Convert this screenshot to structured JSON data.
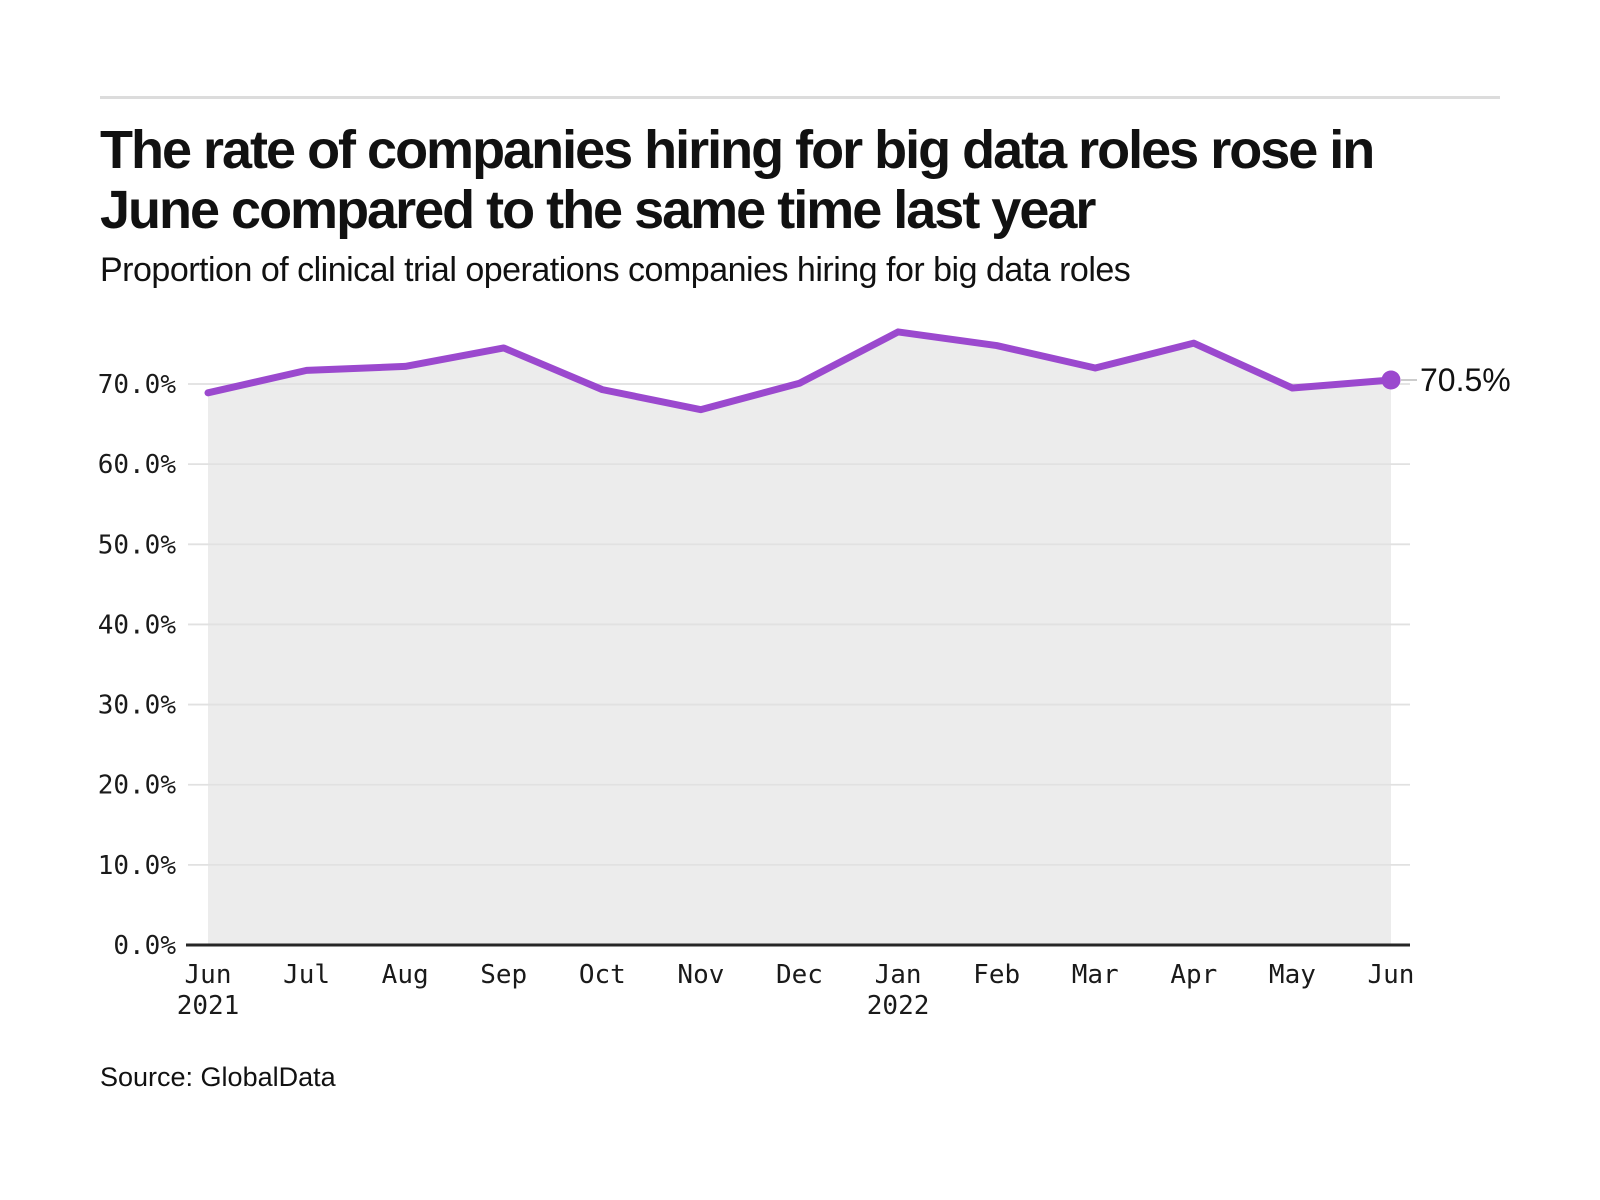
{
  "header": {
    "title": "The rate of companies hiring for big data roles rose in June compared to the same time last year",
    "subtitle": "Proportion of clinical trial operations companies hiring for big data roles"
  },
  "footer": {
    "source": "Source: GlobalData"
  },
  "chart_data": {
    "type": "area",
    "title": "The rate of companies hiring for big data roles rose in June compared to the same time last year",
    "subtitle": "Proportion of clinical trial operations companies hiring for big data roles",
    "source": "Source: GlobalData",
    "categories": [
      "Jun",
      "Jul",
      "Aug",
      "Sep",
      "Oct",
      "Nov",
      "Dec",
      "Jan",
      "Feb",
      "Mar",
      "Apr",
      "May",
      "Jun"
    ],
    "year_labels": [
      {
        "index": 0,
        "label": "2021"
      },
      {
        "index": 7,
        "label": "2022"
      }
    ],
    "series": [
      {
        "name": "Proportion of clinical trial operations companies hiring for big data roles",
        "values": [
          68.9,
          71.7,
          72.2,
          74.5,
          69.3,
          66.8,
          70.1,
          76.5,
          74.8,
          72.0,
          75.1,
          69.5,
          70.5
        ]
      }
    ],
    "end_label": "70.5%",
    "ylim": [
      0,
      78
    ],
    "yticks": [
      0,
      10,
      20,
      30,
      40,
      50,
      60,
      70
    ],
    "ytick_labels": [
      "0.0%",
      "10.0%",
      "20.0%",
      "30.0%",
      "40.0%",
      "50.0%",
      "60.0%",
      "70.0%"
    ],
    "xlabel": "",
    "ylabel": "",
    "grid": true,
    "legend": "none",
    "line_color": "#9B49CE",
    "fill_color": "#ECECEC",
    "grid_color": "#E1E1E1",
    "axis_color": "#262626",
    "leader_color": "#CCCCCC",
    "text_color": "#111111"
  }
}
